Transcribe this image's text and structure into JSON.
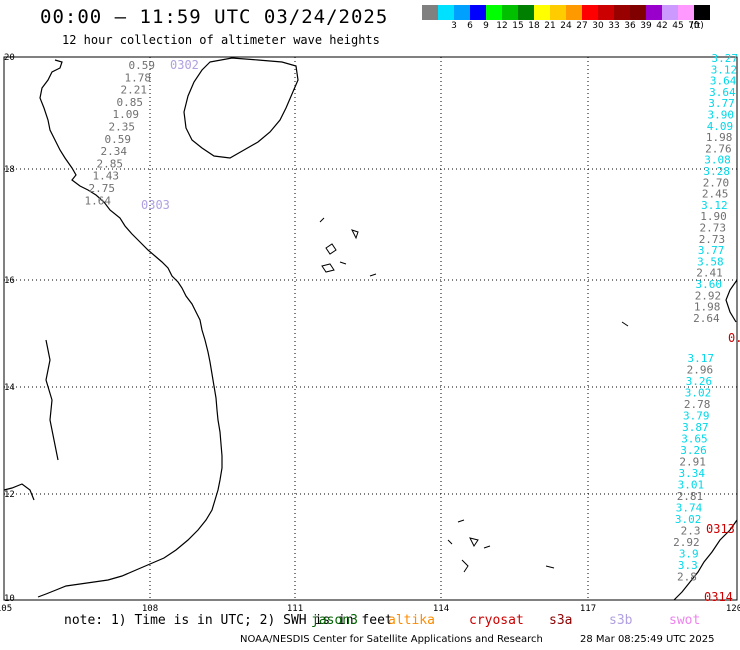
{
  "header": {
    "title": "00:00 – 11:59 UTC 03/24/2025",
    "subtitle": "12 hour collection of altimeter wave heights"
  },
  "colorbar": {
    "unit": "(ft)",
    "bins": [
      {
        "label": "",
        "color": "#808080"
      },
      {
        "label": "3",
        "color": "#00e0ff"
      },
      {
        "label": "6",
        "color": "#00a0ff"
      },
      {
        "label": "9",
        "color": "#0000ff"
      },
      {
        "label": "12",
        "color": "#00ff00"
      },
      {
        "label": "15",
        "color": "#00c000"
      },
      {
        "label": "18",
        "color": "#008000"
      },
      {
        "label": "21",
        "color": "#ffff00"
      },
      {
        "label": "24",
        "color": "#ffcc00"
      },
      {
        "label": "27",
        "color": "#ff9900"
      },
      {
        "label": "30",
        "color": "#ff0000"
      },
      {
        "label": "33",
        "color": "#cc0000"
      },
      {
        "label": "36",
        "color": "#990000"
      },
      {
        "label": "39",
        "color": "#800000"
      },
      {
        "label": "42",
        "color": "#9900cc"
      },
      {
        "label": "45",
        "color": "#cc99ff"
      },
      {
        "label": "70",
        "color": "#ff99ff"
      },
      {
        "label": "",
        "color": "#000000"
      }
    ]
  },
  "map": {
    "lon_ticks": [
      "105",
      "108",
      "111",
      "114",
      "117",
      "120"
    ],
    "lat_ticks": [
      "20",
      "18",
      "16",
      "14",
      "12",
      "10"
    ],
    "pass_labels": [
      {
        "text": "0302",
        "color": "#b0a0e0"
      },
      {
        "text": "0303",
        "color": "#b0a0e0"
      },
      {
        "text": "0313",
        "color": "#cc0000"
      },
      {
        "text": "0314",
        "color": "#cc0000"
      },
      {
        "text": "0.",
        "color": "#cc0000"
      }
    ],
    "track_0302": [
      "0.59",
      "1.78",
      "2.21",
      "0.85",
      "1.09",
      "2.35",
      "0.59",
      "2.34",
      "2.85",
      "1.43",
      "2.75",
      "1.64"
    ],
    "track_east": [
      {
        "v": "3.27",
        "c": "#00d8e8"
      },
      {
        "v": "3.12",
        "c": "#00d8e8"
      },
      {
        "v": "3.64",
        "c": "#00d8e8"
      },
      {
        "v": "3.64",
        "c": "#00d8e8"
      },
      {
        "v": "3.77",
        "c": "#00d8e8"
      },
      {
        "v": "3.90",
        "c": "#00d8e8"
      },
      {
        "v": "4.09",
        "c": "#00d8e8"
      },
      {
        "v": "1.98",
        "c": "#707070"
      },
      {
        "v": "2.76",
        "c": "#707070"
      },
      {
        "v": "3.08",
        "c": "#00d8e8"
      },
      {
        "v": "3.28",
        "c": "#00d8e8"
      },
      {
        "v": "2.70",
        "c": "#707070"
      },
      {
        "v": "2.45",
        "c": "#707070"
      },
      {
        "v": "3.12",
        "c": "#00d8e8"
      },
      {
        "v": "1.90",
        "c": "#707070"
      },
      {
        "v": "2.73",
        "c": "#707070"
      },
      {
        "v": "2.73",
        "c": "#707070"
      },
      {
        "v": "3.77",
        "c": "#00d8e8"
      },
      {
        "v": "3.58",
        "c": "#00d8e8"
      },
      {
        "v": "2.41",
        "c": "#707070"
      },
      {
        "v": "3.60",
        "c": "#00d8e8"
      },
      {
        "v": "2.92",
        "c": "#707070"
      },
      {
        "v": "1.98",
        "c": "#707070"
      },
      {
        "v": "2.64",
        "c": "#707070"
      }
    ],
    "track_east2": [
      {
        "v": "3.17",
        "c": "#00d8e8"
      },
      {
        "v": "2.96",
        "c": "#707070"
      },
      {
        "v": "3.26",
        "c": "#00d8e8"
      },
      {
        "v": "3.02",
        "c": "#00d8e8"
      },
      {
        "v": "2.78",
        "c": "#707070"
      },
      {
        "v": "3.79",
        "c": "#00d8e8"
      },
      {
        "v": "3.87",
        "c": "#00d8e8"
      },
      {
        "v": "3.65",
        "c": "#00d8e8"
      },
      {
        "v": "3.26",
        "c": "#00d8e8"
      },
      {
        "v": "2.91",
        "c": "#707070"
      },
      {
        "v": "3.34",
        "c": "#00d8e8"
      },
      {
        "v": "3.01",
        "c": "#00d8e8"
      },
      {
        "v": "2.81",
        "c": "#707070"
      },
      {
        "v": "3.74",
        "c": "#00d8e8"
      },
      {
        "v": "3.02",
        "c": "#00d8e8"
      },
      {
        "v": "2.3",
        "c": "#707070"
      },
      {
        "v": "2.92",
        "c": "#707070"
      },
      {
        "v": "3.9",
        "c": "#00d8e8"
      },
      {
        "v": "3.3",
        "c": "#00d8e8"
      },
      {
        "v": "2.8",
        "c": "#707070"
      }
    ]
  },
  "legend": {
    "note": "note: 1) Time is in UTC; 2) SWH is in feet",
    "satellites": [
      {
        "name": "jason3",
        "color": "#006400"
      },
      {
        "name": "altika",
        "color": "#ff8c00"
      },
      {
        "name": "cryosat",
        "color": "#cc0000"
      },
      {
        "name": "s3a",
        "color": "#8b0000"
      },
      {
        "name": "s3b",
        "color": "#b0a0e0"
      },
      {
        "name": "swot",
        "color": "#ee82ee"
      }
    ]
  },
  "footer": {
    "left": "NOAA/NESDIS Center for Satellite Applications and Research",
    "right": "28 Mar 08:25:49 UTC 2025"
  }
}
